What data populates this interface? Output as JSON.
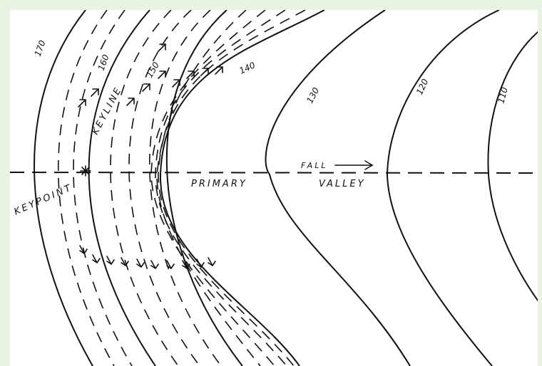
{
  "contour_labels": {
    "c170": "170",
    "c160": "160",
    "c150": "150",
    "c140": "140",
    "c130": "130",
    "c120": "120",
    "c110": "110"
  },
  "labels": {
    "keypoint": "KEYPOINT",
    "keyline": "KEYLINE",
    "primary": "PRIMARY",
    "valley": "VALLEY",
    "fall": "FALL"
  },
  "colors": {
    "background": "#e8f3e4",
    "ink": "#111111",
    "paper": "#ffffff"
  }
}
